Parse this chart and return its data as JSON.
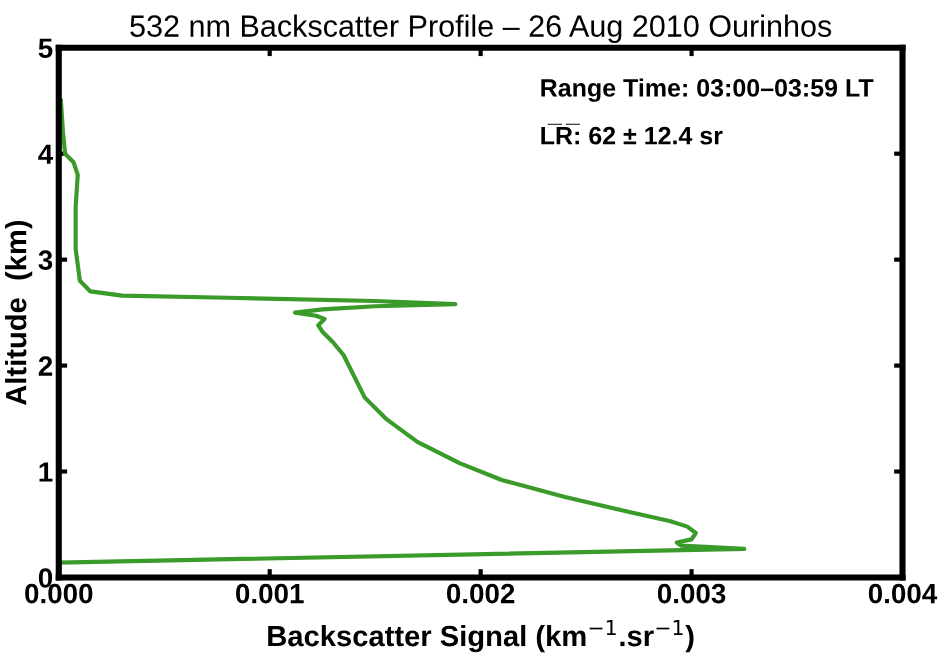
{
  "chart_data": {
    "type": "line",
    "title": "532 nm Backscatter Profile – 26 Aug 2010 Ourinhos",
    "xlabel": "Backscatter Signal (km$^{−1}$.sr$^{−1}$)",
    "ylabel": "Altitude  (km)",
    "annotations": [
      "Range Time: 03:00–03:59 LT",
      "L̅R̅: 62 ± 12.4 sr"
    ],
    "series": [
      {
        "color": "#3a9a2a",
        "x": [
          0.0,
          0.00325,
          0.00295,
          0.00293,
          0.003,
          0.00302,
          0.00298,
          0.0029,
          0.0027,
          0.0024,
          0.0021,
          0.0019,
          0.0017,
          0.00155,
          0.00145,
          0.0014,
          0.00135,
          0.0013,
          0.00125,
          0.00123,
          0.00126,
          0.00122,
          0.00112,
          0.00125,
          0.0015,
          0.00188,
          0.0015,
          0.0008,
          0.0003,
          0.00015,
          0.0001,
          8e-05,
          8e-05,
          9e-05,
          7e-05,
          3e-05,
          2e-05,
          1e-05
        ],
        "values": [
          0.14,
          0.27,
          0.3,
          0.33,
          0.36,
          0.42,
          0.48,
          0.53,
          0.62,
          0.76,
          0.92,
          1.08,
          1.28,
          1.5,
          1.7,
          1.9,
          2.1,
          2.22,
          2.32,
          2.38,
          2.44,
          2.47,
          2.5,
          2.53,
          2.56,
          2.58,
          2.61,
          2.64,
          2.66,
          2.7,
          2.8,
          3.1,
          3.5,
          3.8,
          3.92,
          4.0,
          4.2,
          4.5
        ]
      }
    ],
    "xlim": [
      0,
      0.004
    ],
    "ylim": [
      0,
      5
    ],
    "xticks": [
      {
        "value": 0,
        "label": "0.000"
      },
      {
        "value": 0.001,
        "label": "0.001"
      },
      {
        "value": 0.002,
        "label": "0.002"
      },
      {
        "value": 0.003,
        "label": "0.003"
      },
      {
        "value": 0.004,
        "label": "0.004"
      }
    ],
    "yticks": [
      0,
      1,
      2,
      3,
      4,
      5
    ]
  }
}
